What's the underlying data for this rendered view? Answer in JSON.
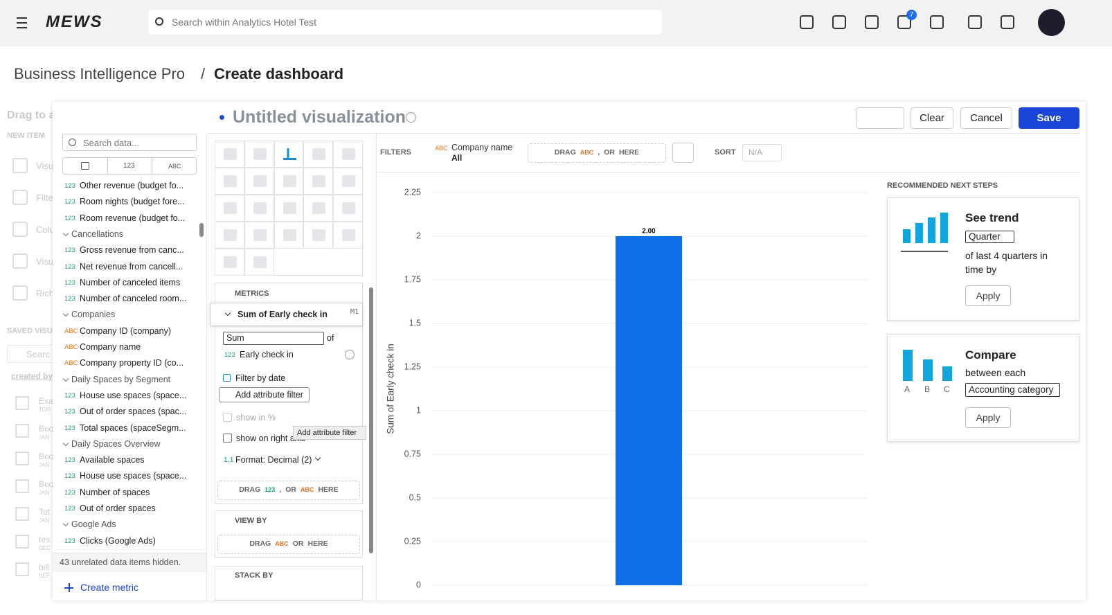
{
  "header": {
    "logo": "MEWS",
    "search_placeholder": "Search within Analytics Hotel Test",
    "notification_count": 7
  },
  "breadcrumb": {
    "parent": "Business Intelligence Pro",
    "separator": "/",
    "current": "Create dashboard"
  },
  "background_panel": {
    "heading": "Drag to a",
    "new_item": "NEW ITEM",
    "items": [
      "Visu",
      "Filte",
      "Colu",
      "Visu",
      "Rich"
    ],
    "saved": "SAVED VISU",
    "search": "Searc",
    "filter": "created by",
    "list": [
      {
        "title": "Exa",
        "sub": "TOD"
      },
      {
        "title": "Boo",
        "sub": "JAN"
      },
      {
        "title": "Boo",
        "sub": "JAN"
      },
      {
        "title": "Boo",
        "sub": "JAN"
      },
      {
        "title": "Tot",
        "sub": "JAN"
      },
      {
        "title": "tes",
        "sub": "DEC"
      },
      {
        "title": "bill",
        "sub": "SEP"
      }
    ]
  },
  "editor": {
    "title": "Untitled visualization",
    "clear": "Clear",
    "cancel": "Cancel",
    "save": "Save"
  },
  "data_panel": {
    "search_placeholder": "Search data...",
    "tabs": [
      "123",
      "ABC"
    ],
    "items": [
      {
        "kind": "123",
        "label": "Other revenue (budget fo..."
      },
      {
        "kind": "123",
        "label": "Room nights (budget fore..."
      },
      {
        "kind": "123",
        "label": "Room revenue (budget fo..."
      },
      {
        "group": "Cancellations"
      },
      {
        "kind": "123",
        "label": "Gross revenue from canc..."
      },
      {
        "kind": "123",
        "label": "Net revenue from cancell..."
      },
      {
        "kind": "123",
        "label": "Number of canceled items"
      },
      {
        "kind": "123",
        "label": "Number of canceled room..."
      },
      {
        "group": "Companies"
      },
      {
        "kind": "ABC",
        "label": "Company ID (company)"
      },
      {
        "kind": "ABC",
        "label": "Company name"
      },
      {
        "kind": "ABC",
        "label": "Company property ID (co..."
      },
      {
        "group": "Daily Spaces by Segment"
      },
      {
        "kind": "123",
        "label": "House use spaces (space..."
      },
      {
        "kind": "123",
        "label": "Out of order spaces (spac..."
      },
      {
        "kind": "123",
        "label": "Total spaces (spaceSegm..."
      },
      {
        "group": "Daily Spaces Overview"
      },
      {
        "kind": "123",
        "label": "Available spaces"
      },
      {
        "kind": "123",
        "label": "House use spaces (space..."
      },
      {
        "kind": "123",
        "label": "Number of spaces"
      },
      {
        "kind": "123",
        "label": "Out of order spaces"
      },
      {
        "group": "Google Ads"
      },
      {
        "kind": "123",
        "label": "Clicks (Google Ads)"
      }
    ],
    "hidden_note": "43 unrelated data items hidden.",
    "create_metric": "Create metric"
  },
  "config": {
    "metrics_heading": "METRICS",
    "metric_name": "Sum of Early check in",
    "metric_id": "M1",
    "aggregation": "Sum",
    "of": "of",
    "field_kind": "123",
    "field": "Early check in",
    "filter_by_date": "Filter by date",
    "add_attribute_filter": "Add attribute filter",
    "show_in_percent": "show in %",
    "show_on_right_axis": "show on right axis",
    "format_icon": "1,1",
    "format": "Format: Decimal (2)",
    "tooltip": "Add attribute filter",
    "metric_drop": [
      "DRAG",
      "123",
      ",",
      "OR",
      "ABC",
      "HERE"
    ],
    "view_by_heading": "VIEW BY",
    "view_by_drop": [
      "DRAG",
      "ABC",
      "OR",
      "HERE"
    ],
    "stack_by_heading": "STACK BY"
  },
  "filters": {
    "heading": "FILTERS",
    "filter_kind": "ABC",
    "filter_name": "Company name",
    "filter_value": "All",
    "drop": [
      "DRAG",
      "ABC",
      ",",
      "OR",
      "HERE"
    ],
    "sort_heading": "SORT",
    "sort_value": "N/A"
  },
  "chart_data": {
    "type": "bar",
    "y_label": "Sum of Early check in",
    "categories": [
      null
    ],
    "values": [
      2
    ],
    "value_labels": [
      "2.00"
    ],
    "color": "#0f6fe8",
    "ylim": [
      0,
      2.25
    ],
    "yticks": [
      0,
      0.25,
      0.5,
      0.75,
      1,
      1.25,
      1.5,
      1.75,
      2,
      2.25
    ],
    "grid": true
  },
  "recommendations": {
    "heading": "RECOMMENDED NEXT STEPS",
    "trend": {
      "title": "See trend",
      "select": "Quarter",
      "text": "of last 4 quarters in time by",
      "apply": "Apply"
    },
    "compare": {
      "title": "Compare",
      "text": "between each",
      "select": "Accounting category",
      "apply": "Apply",
      "labels": [
        "A",
        "B",
        "C"
      ]
    }
  }
}
